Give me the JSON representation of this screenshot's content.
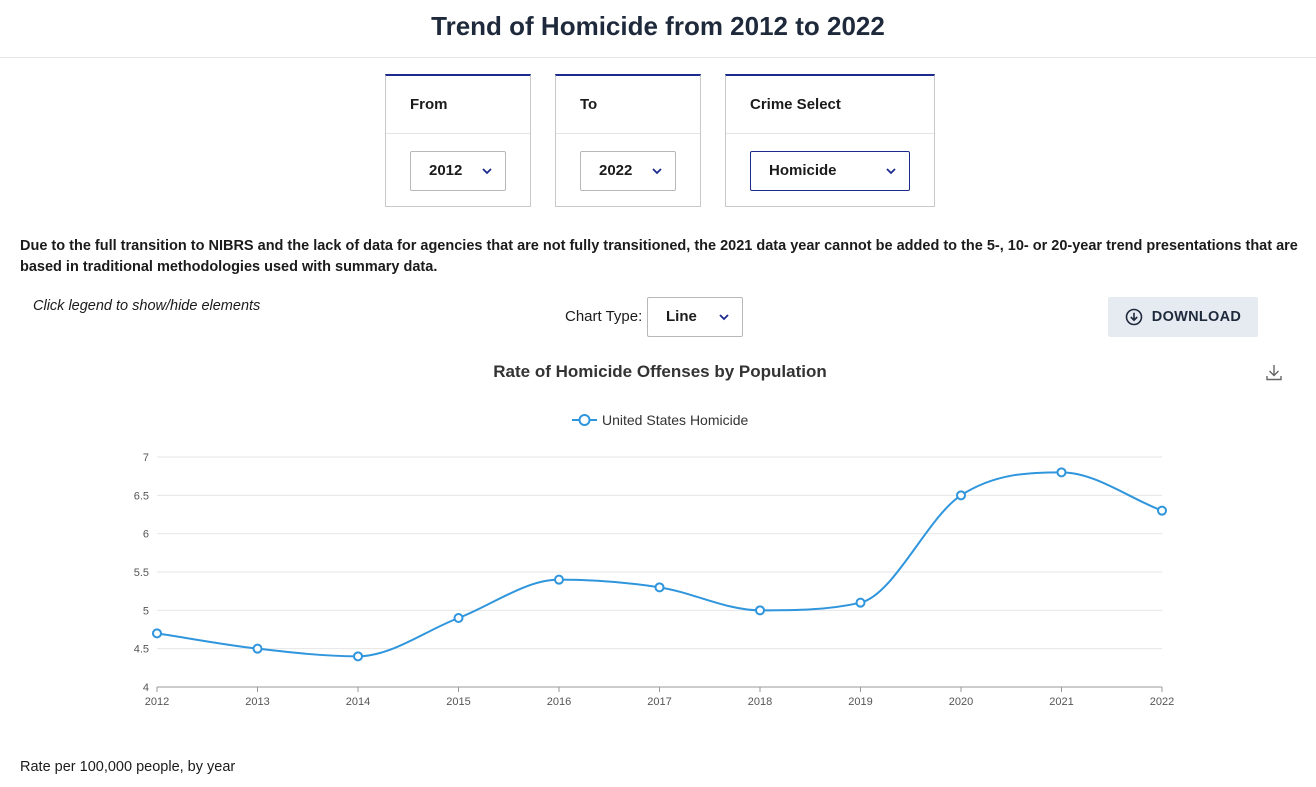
{
  "page": {
    "title": "Trend of Homicide from 2012 to 2022"
  },
  "filters": {
    "from": {
      "label": "From",
      "value": "2012"
    },
    "to": {
      "label": "To",
      "value": "2022"
    },
    "crime": {
      "label": "Crime Select",
      "value": "Homicide"
    }
  },
  "notice": "Due to the full transition to NIBRS and the lack of data for agencies that are not fully transitioned, the 2021 data year cannot be added to the 5-, 10- or 20-year trend presentations that are based in traditional methodologies used with summary data.",
  "controls": {
    "legend_hint": "Click legend to show/hide elements",
    "chart_type_label": "Chart Type:",
    "chart_type_value": "Line",
    "download_label": "DOWNLOAD"
  },
  "footnote": "Rate per 100,000 people, by year",
  "colors": {
    "series": "#2f95dc",
    "accent": "#1b2a8c",
    "grid": "#e6e6e6"
  },
  "chart_data": {
    "type": "line",
    "title": "Rate of Homicide Offenses by Population",
    "xlabel": "",
    "ylabel": "",
    "x": [
      "2012",
      "2013",
      "2014",
      "2015",
      "2016",
      "2017",
      "2018",
      "2019",
      "2020",
      "2021",
      "2022"
    ],
    "series": [
      {
        "name": "United States Homicide",
        "values": [
          4.7,
          4.5,
          4.4,
          4.9,
          5.4,
          5.3,
          5.0,
          5.1,
          6.5,
          6.8,
          6.3
        ]
      }
    ],
    "ylim": [
      4,
      7
    ],
    "yticks": [
      "4",
      "4.5",
      "5",
      "5.5",
      "6",
      "6.5",
      "7"
    ],
    "grid": true,
    "legend": "top-center"
  }
}
